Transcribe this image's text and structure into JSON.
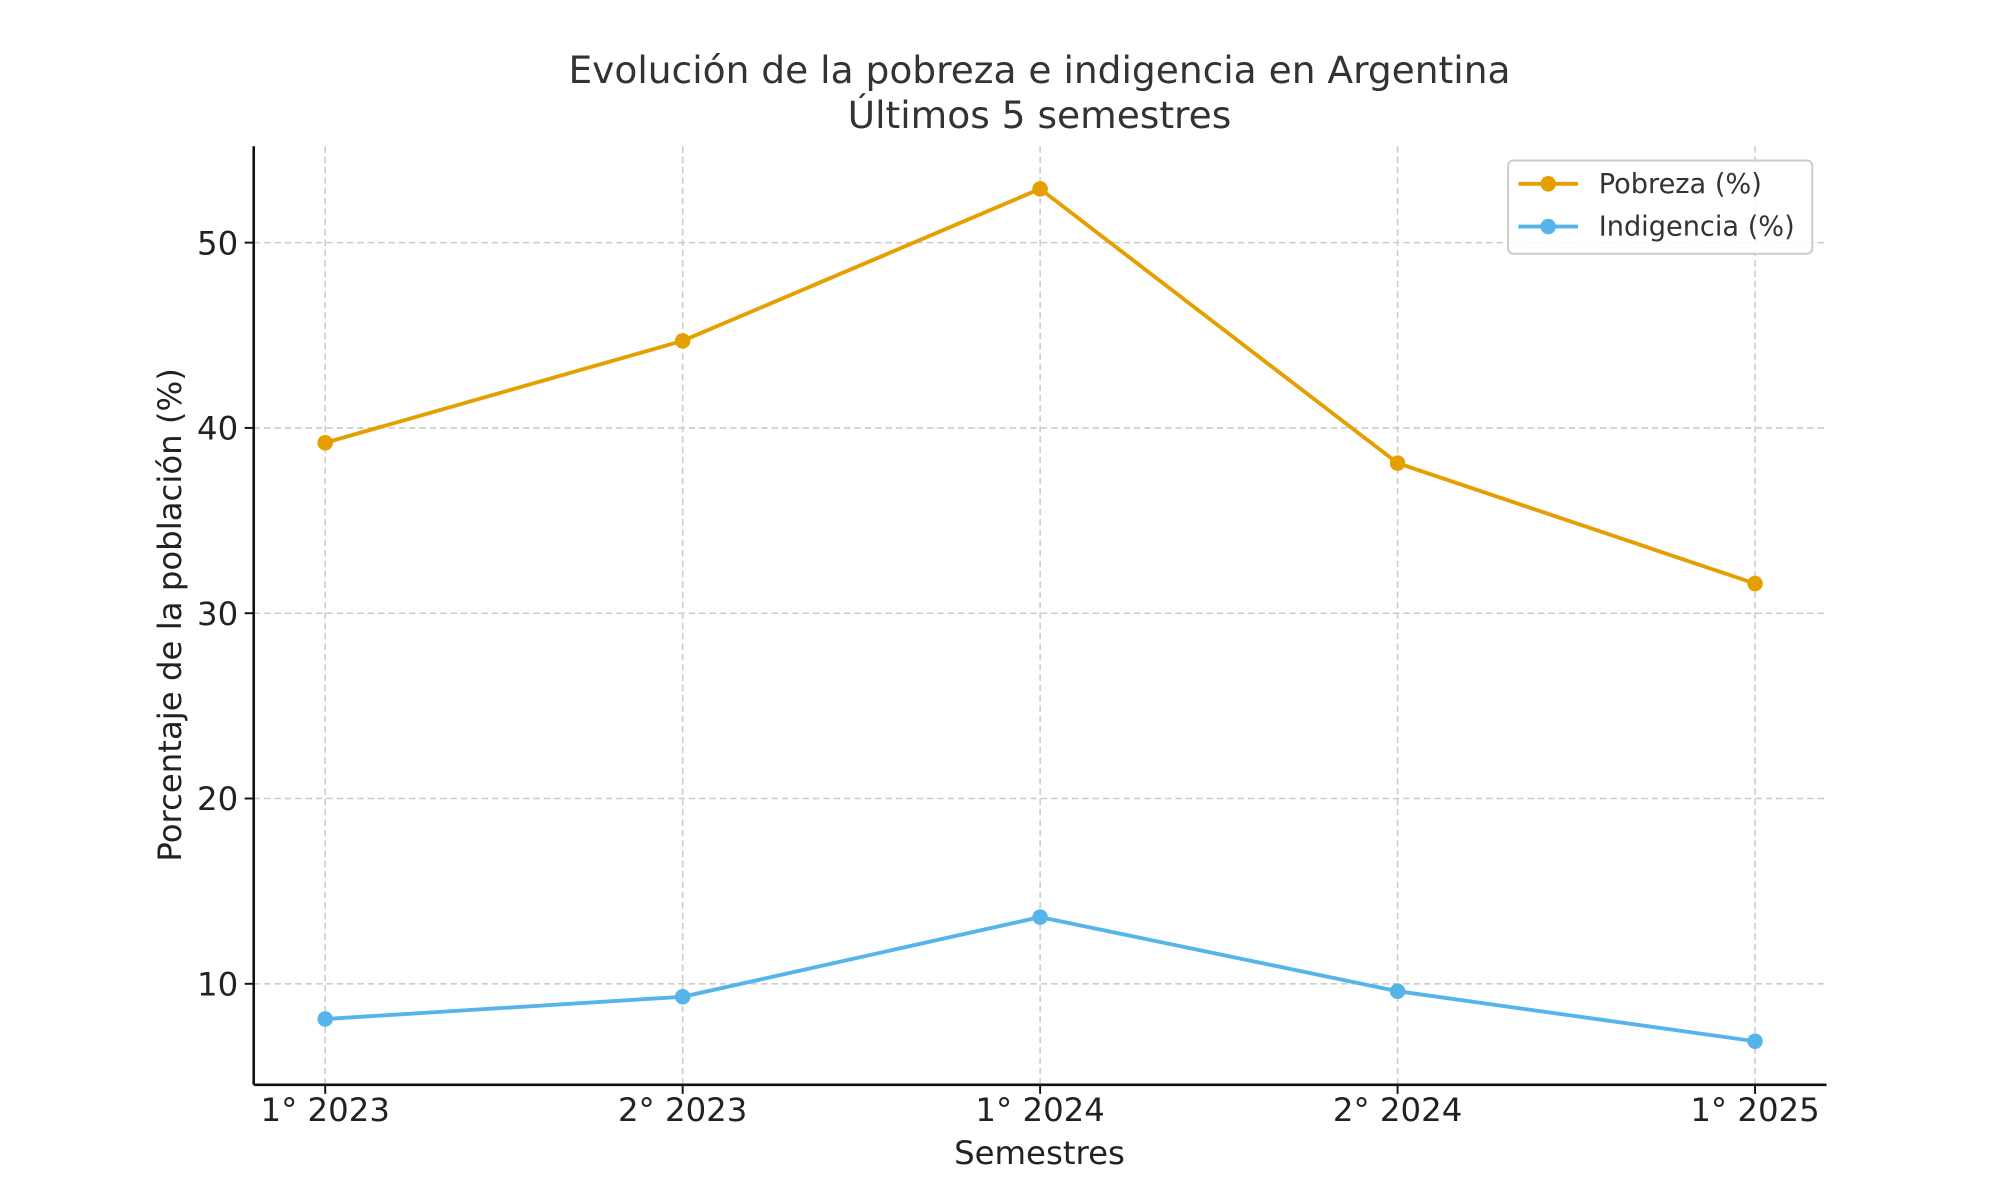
{
  "chart_data": {
    "type": "line",
    "title": "Evolución de la pobreza e indigencia en Argentina",
    "subtitle": "Últimos 5 semestres",
    "xlabel": "Semestres",
    "ylabel": "Porcentaje de la población (%)",
    "categories": [
      "1° 2023",
      "2° 2023",
      "1° 2024",
      "2° 2024",
      "1° 2025"
    ],
    "ylim": [
      4.55,
      55.2
    ],
    "yticks": [
      10,
      20,
      30,
      40,
      50
    ],
    "grid": true,
    "legend_position": "top-right",
    "series": [
      {
        "name": "Pobreza (%)",
        "color": "#E69F00",
        "values": [
          39.2,
          44.7,
          52.9,
          38.1,
          31.6
        ]
      },
      {
        "name": "Indigencia (%)",
        "color": "#56B4E9",
        "values": [
          8.1,
          9.3,
          13.6,
          9.6,
          6.9
        ]
      }
    ]
  }
}
